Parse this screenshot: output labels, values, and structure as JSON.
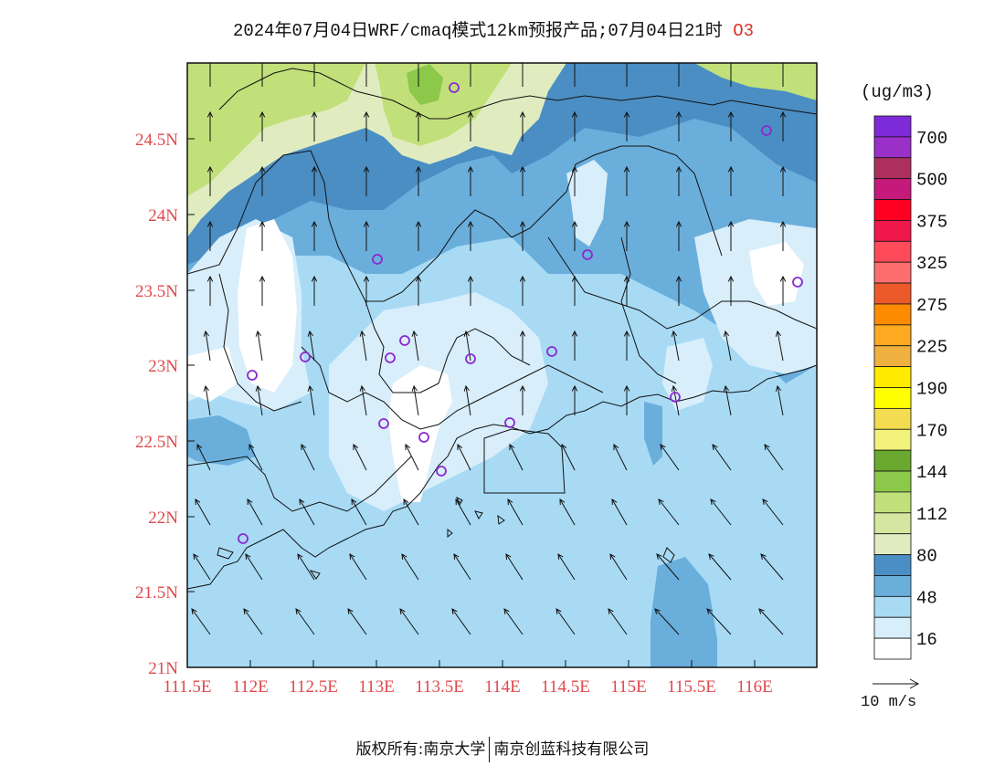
{
  "title": {
    "text": "2024年07月04日WRF/cmaq模式12km预报产品;07月04日21时",
    "species": "O3"
  },
  "footer": {
    "copyright": "版权所有:南京大学",
    "company": "南京创蓝科技有限公司"
  },
  "lat_labels": [
    "24.5N",
    "24N",
    "23.5N",
    "23N",
    "22.5N",
    "22N",
    "21.5N",
    "21N"
  ],
  "lon_labels": [
    "111.5E",
    "112E",
    "112.5E",
    "113E",
    "113.5E",
    "114E",
    "114.5E",
    "115E",
    "115.5E",
    "116E"
  ],
  "colorbar": {
    "unit": "(ug/m3)",
    "levels": [
      "700",
      "500",
      "375",
      "325",
      "275",
      "225",
      "190",
      "170",
      "144",
      "112",
      "80",
      "48",
      "16"
    ],
    "colors": [
      "#7d2ad8",
      "#9a30c8",
      "#ad2f5c",
      "#c51a7c",
      "#ff0022",
      "#f0184a",
      "#ff4a5a",
      "#ff6e6e",
      "#ed5a2a",
      "#ff8c00",
      "#ffaa20",
      "#f0b040",
      "#ffea00",
      "#ffff00",
      "#f4dc50",
      "#f2f27a",
      "#6aa830",
      "#8cc84a",
      "#c2e07a",
      "#d4e6a0",
      "#e0ecc0",
      "#4a8ec4",
      "#6aaedc",
      "#a8daf4",
      "#d8eefa",
      "#ffffff"
    ]
  },
  "wind_key": {
    "label": "10 m/s"
  },
  "palette": {
    "base": "#a8daf4",
    "light": "#d8eefa",
    "white": "#ffffff",
    "mid": "#6aaedc",
    "dark": "#4a8ec4",
    "pale_green": "#e0ecc0",
    "light_green": "#c2e07a",
    "green": "#8cc84a",
    "station": "#8a2ad0",
    "axis_text": "#e0484b"
  }
}
